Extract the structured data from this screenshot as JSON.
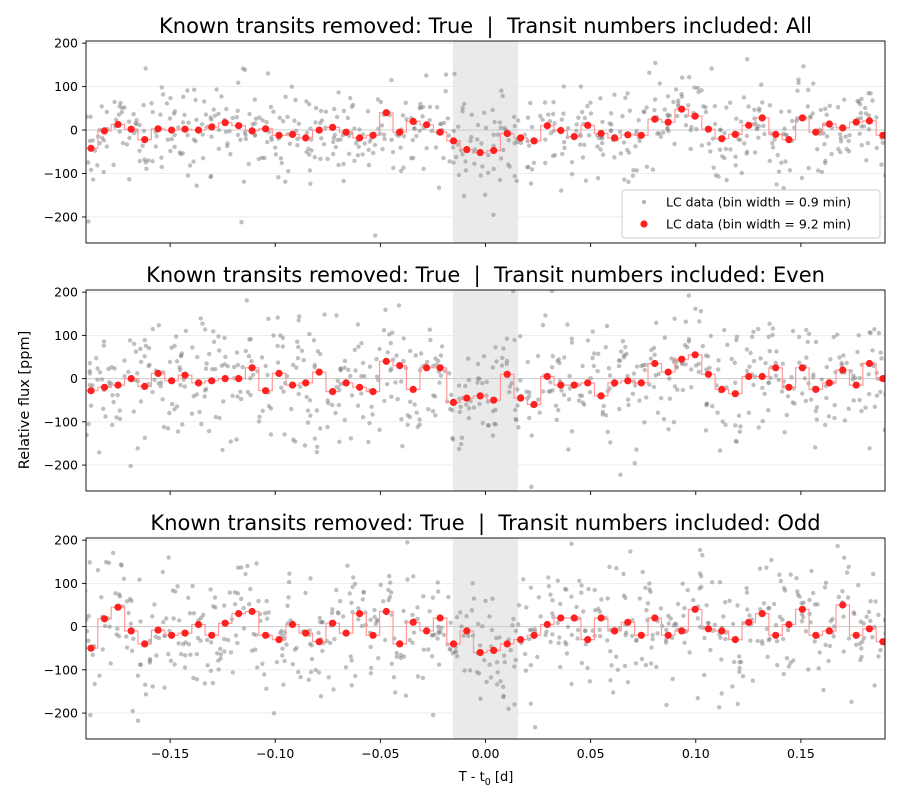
{
  "figure": {
    "ylabel": "Relative flux [ppm]",
    "xlabel_main": "T - t",
    "xlabel_sub": "0",
    "xlabel_unit": " [d]"
  },
  "colors": {
    "raw_points": "#808080",
    "binned_points": "#ff2020",
    "binned_step": "#ff9999",
    "transit_window": "#d9d9d9",
    "grid": "#e8e8e8",
    "zero_line": "#cccccc"
  },
  "legend": {
    "raw_label": "LC data (bin width = 0.9 min)",
    "binned_label": "LC data (bin width = 9.2 min)"
  },
  "chart_data": [
    {
      "type": "scatter",
      "title": "Known transits removed: True  |  Transit numbers included: All",
      "xlim": [
        -0.19,
        0.19
      ],
      "ylim": [
        -260,
        205
      ],
      "xticks": [
        -0.15,
        -0.1,
        -0.05,
        0.0,
        0.05,
        0.1,
        0.15
      ],
      "xticklabels": [
        "−0.15",
        "−0.10",
        "−0.05",
        "0.00",
        "0.05",
        "0.10",
        "0.15"
      ],
      "yticks": [
        -200,
        -100,
        0,
        100,
        200
      ],
      "yticklabels": [
        "−200",
        "−100",
        "0",
        "100",
        "200"
      ],
      "transit_window": [
        -0.0155,
        0.0155
      ],
      "grid": "horizontal",
      "legend_position": "bottom-right",
      "raw_scatter_sd": 55,
      "series": [
        {
          "name": "LC data (bin width = 9.2 min)",
          "x": [
            -0.1876,
            -0.1812,
            -0.1748,
            -0.1685,
            -0.1621,
            -0.1557,
            -0.1493,
            -0.1429,
            -0.1365,
            -0.1302,
            -0.1238,
            -0.1174,
            -0.111,
            -0.1046,
            -0.0982,
            -0.0918,
            -0.0855,
            -0.0791,
            -0.0727,
            -0.0663,
            -0.0599,
            -0.0535,
            -0.0472,
            -0.0408,
            -0.0344,
            -0.028,
            -0.0216,
            -0.0152,
            -0.0089,
            -0.0025,
            0.0039,
            0.0103,
            0.0167,
            0.0231,
            0.0294,
            0.0358,
            0.0422,
            0.0486,
            0.055,
            0.0614,
            0.0677,
            0.0741,
            0.0805,
            0.0869,
            0.0933,
            0.0997,
            0.106,
            0.1124,
            0.1188,
            0.1252,
            0.1316,
            0.138,
            0.1443,
            0.1507,
            0.1571,
            0.1635,
            0.1699,
            0.1763,
            0.1826,
            0.189
          ],
          "y": [
            -42,
            -2,
            13,
            2,
            -22,
            3,
            0,
            2,
            0,
            7,
            17,
            10,
            -2,
            3,
            -12,
            -10,
            -18,
            0,
            6,
            -5,
            -18,
            -12,
            40,
            -5,
            20,
            12,
            -5,
            -25,
            -45,
            -52,
            -47,
            -8,
            -18,
            -25,
            10,
            -1,
            -15,
            11,
            -8,
            -18,
            -11,
            -12,
            25,
            18,
            48,
            32,
            2,
            -20,
            -10,
            11,
            28,
            -10,
            -22,
            28,
            -5,
            14,
            5,
            18,
            21,
            -12
          ]
        }
      ]
    },
    {
      "type": "scatter",
      "title": "Known transits removed: True  |  Transit numbers included: Even",
      "xlim": [
        -0.19,
        0.19
      ],
      "ylim": [
        -260,
        205
      ],
      "xticks": [
        -0.15,
        -0.1,
        -0.05,
        0.0,
        0.05,
        0.1,
        0.15
      ],
      "xticklabels": [
        "−0.15",
        "−0.10",
        "−0.05",
        "0.00",
        "0.05",
        "0.10",
        "0.15"
      ],
      "yticks": [
        -200,
        -100,
        0,
        100,
        200
      ],
      "yticklabels": [
        "−200",
        "−100",
        "0",
        "100",
        "200"
      ],
      "transit_window": [
        -0.0155,
        0.0155
      ],
      "grid": "horizontal",
      "raw_scatter_sd": 70,
      "series": [
        {
          "name": "LC data (bin width = 9.2 min)",
          "x": [
            -0.1876,
            -0.1812,
            -0.1748,
            -0.1685,
            -0.1621,
            -0.1557,
            -0.1493,
            -0.1429,
            -0.1365,
            -0.1302,
            -0.1238,
            -0.1174,
            -0.111,
            -0.1046,
            -0.0982,
            -0.0918,
            -0.0855,
            -0.0791,
            -0.0727,
            -0.0663,
            -0.0599,
            -0.0535,
            -0.0472,
            -0.0408,
            -0.0344,
            -0.028,
            -0.0216,
            -0.0152,
            -0.0089,
            -0.0025,
            0.0039,
            0.0103,
            0.0167,
            0.0231,
            0.0294,
            0.0358,
            0.0422,
            0.0486,
            0.055,
            0.0614,
            0.0677,
            0.0741,
            0.0805,
            0.0869,
            0.0933,
            0.0997,
            0.106,
            0.1124,
            0.1188,
            0.1252,
            0.1316,
            0.138,
            0.1443,
            0.1507,
            0.1571,
            0.1635,
            0.1699,
            0.1763,
            0.1826,
            0.189
          ],
          "y": [
            -28,
            -20,
            -15,
            0,
            -18,
            12,
            -5,
            8,
            -10,
            -5,
            0,
            0,
            25,
            -28,
            12,
            -15,
            -10,
            15,
            -30,
            -10,
            -20,
            -30,
            40,
            30,
            -25,
            25,
            25,
            -55,
            -45,
            -40,
            -50,
            10,
            -45,
            -60,
            5,
            -15,
            -15,
            -10,
            -40,
            -10,
            -5,
            -10,
            35,
            15,
            45,
            55,
            10,
            -25,
            -35,
            5,
            5,
            25,
            -20,
            25,
            -25,
            -10,
            20,
            -15,
            35,
            0
          ]
        }
      ]
    },
    {
      "type": "scatter",
      "title": "Known transits removed: True  |  Transit numbers included: Odd",
      "xlim": [
        -0.19,
        0.19
      ],
      "ylim": [
        -260,
        205
      ],
      "xticks": [
        -0.15,
        -0.1,
        -0.05,
        0.0,
        0.05,
        0.1,
        0.15
      ],
      "xticklabels": [
        "−0.15",
        "−0.10",
        "−0.05",
        "0.00",
        "0.05",
        "0.10",
        "0.15"
      ],
      "yticks": [
        -200,
        -100,
        0,
        100,
        200
      ],
      "yticklabels": [
        "−200",
        "−100",
        "0",
        "100",
        "200"
      ],
      "transit_window": [
        -0.0155,
        0.0155
      ],
      "grid": "horizontal",
      "xlabel": "T - t0 [d]",
      "raw_scatter_sd": 70,
      "series": [
        {
          "name": "LC data (bin width = 9.2 min)",
          "x": [
            -0.1876,
            -0.1812,
            -0.1748,
            -0.1685,
            -0.1621,
            -0.1557,
            -0.1493,
            -0.1429,
            -0.1365,
            -0.1302,
            -0.1238,
            -0.1174,
            -0.111,
            -0.1046,
            -0.0982,
            -0.0918,
            -0.0855,
            -0.0791,
            -0.0727,
            -0.0663,
            -0.0599,
            -0.0535,
            -0.0472,
            -0.0408,
            -0.0344,
            -0.028,
            -0.0216,
            -0.0152,
            -0.0089,
            -0.0025,
            0.0039,
            0.0103,
            0.0167,
            0.0231,
            0.0294,
            0.0358,
            0.0422,
            0.0486,
            0.055,
            0.0614,
            0.0677,
            0.0741,
            0.0805,
            0.0869,
            0.0933,
            0.0997,
            0.106,
            0.1124,
            0.1188,
            0.1252,
            0.1316,
            0.138,
            0.1443,
            0.1507,
            0.1571,
            0.1635,
            0.1699,
            0.1763,
            0.1826,
            0.189
          ],
          "y": [
            -50,
            18,
            45,
            -10,
            -40,
            -8,
            -20,
            -15,
            5,
            -20,
            8,
            30,
            35,
            -20,
            -30,
            5,
            -15,
            -35,
            8,
            -15,
            30,
            -20,
            35,
            -40,
            10,
            -10,
            20,
            -40,
            -10,
            -60,
            -55,
            -40,
            -30,
            -20,
            5,
            20,
            20,
            -30,
            20,
            -10,
            10,
            -20,
            20,
            -20,
            -10,
            40,
            -5,
            -10,
            -30,
            10,
            30,
            -20,
            5,
            40,
            -20,
            -10,
            50,
            -20,
            -5,
            -35
          ]
        }
      ]
    }
  ]
}
